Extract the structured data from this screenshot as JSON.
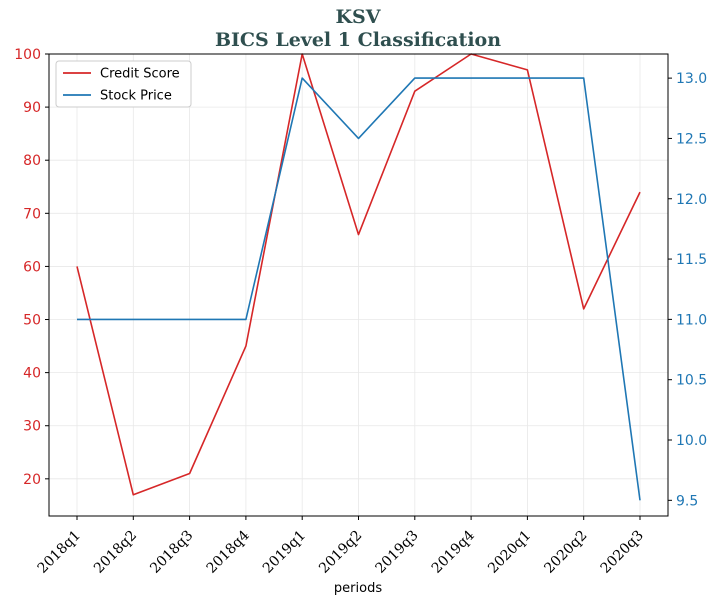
{
  "chart_data": {
    "type": "line",
    "title": "KSV",
    "subtitle": "BICS Level 1 Classification",
    "xlabel": "periods",
    "categories": [
      "2018q1",
      "2018q2",
      "2018q3",
      "2018q4",
      "2019q1",
      "2019q2",
      "2019q3",
      "2019q4",
      "2020q1",
      "2020q2",
      "2020q3"
    ],
    "y_left": {
      "range": [
        13,
        100
      ],
      "ticks": [
        20,
        30,
        40,
        50,
        60,
        70,
        80,
        90,
        100
      ],
      "color": "#d62728"
    },
    "y_right": {
      "range": [
        9.37,
        13.2
      ],
      "ticks": [
        "9.5",
        "10.0",
        "10.5",
        "11.0",
        "11.5",
        "12.0",
        "12.5",
        "13.0"
      ],
      "color": "#1f77b4"
    },
    "series": [
      {
        "name": "Credit Score",
        "axis": "left",
        "color": "#d62728",
        "values": [
          60,
          17,
          21,
          45,
          100,
          66,
          93,
          100,
          97,
          52,
          74
        ]
      },
      {
        "name": "Stock Price",
        "axis": "right",
        "color": "#1f77b4",
        "values": [
          11.0,
          11.0,
          11.0,
          11.0,
          13.0,
          12.5,
          13.0,
          13.0,
          13.0,
          13.0,
          9.5
        ]
      }
    ],
    "grid": true,
    "legend_position": "top-left"
  }
}
